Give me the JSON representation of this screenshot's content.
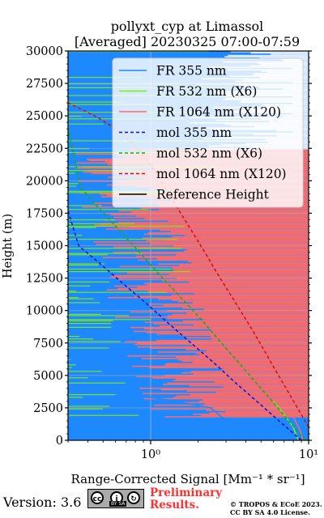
{
  "chart_data": {
    "type": "line",
    "title_line1": "pollyxt_cyp at Limassol",
    "title_line2": "[Averaged] 20230325 07:00-07:59",
    "xlabel": "Range-Corrected Signal [Mm⁻¹ * sr⁻¹]",
    "ylabel": "Height (m)",
    "xscale": "log",
    "xlim": [
      0.3,
      10
    ],
    "ylim": [
      0,
      30000
    ],
    "x_ticks": [
      {
        "value": 1,
        "label": "10⁰"
      },
      {
        "value": 10,
        "label": "10¹"
      }
    ],
    "y_ticks": [
      0,
      2500,
      5000,
      7500,
      10000,
      12500,
      15000,
      17500,
      20000,
      22500,
      25000,
      27500,
      30000
    ],
    "grid": true,
    "legend_position": "top-right",
    "colors": {
      "fr355": "#1e88ff",
      "fr532": "#80ee10",
      "fr1064": "#ff6a6a",
      "mol355": "#1010d0",
      "mol532": "#10b010",
      "mol1064": "#d01010",
      "ref": "#000000"
    },
    "series": [
      {
        "name": "FR 355 nm",
        "key": "fr355",
        "style": "solid",
        "x": [
          9.0,
          6.0,
          4.0,
          2.8,
          2.4,
          2.0,
          1.6,
          1.3,
          1.0,
          0.8,
          0.6
        ],
        "y": [
          0,
          500,
          1000,
          1800,
          2500,
          2700,
          2900,
          3100,
          3300,
          3450,
          3500
        ]
      },
      {
        "name": "FR 532 nm (X6)",
        "key": "fr532",
        "style": "solid",
        "x": [
          8.6,
          8.0,
          7.0,
          6.0
        ],
        "y": [
          0,
          1000,
          2000,
          3000
        ]
      },
      {
        "name": "FR 1064 nm (X120)",
        "key": "fr1064",
        "style": "solid",
        "x": [
          9.2,
          8.8,
          8.0,
          7.2
        ],
        "y": [
          0,
          800,
          1800,
          2800
        ]
      },
      {
        "name": "mol 355 nm",
        "key": "mol355",
        "style": "dashed",
        "x": [
          9.0,
          6.5,
          4.7,
          3.4,
          2.5,
          1.8,
          1.3,
          0.95,
          0.68,
          0.49,
          0.35,
          0.3
        ],
        "y": [
          0,
          1500,
          3000,
          4500,
          6000,
          7500,
          9000,
          10500,
          12000,
          13500,
          15000,
          17700
        ]
      },
      {
        "name": "mol 532 nm (X6)",
        "key": "mol532",
        "style": "dashed",
        "x": [
          9.5,
          7.5,
          5.9,
          4.6,
          3.6,
          2.8,
          2.2,
          1.7,
          1.3,
          1.0,
          0.78,
          0.6,
          0.46,
          0.36,
          0.3
        ],
        "y": [
          0,
          1500,
          3000,
          4500,
          6000,
          7500,
          9000,
          10500,
          12000,
          13500,
          15000,
          16500,
          18000,
          19500,
          24100
        ]
      },
      {
        "name": "mol 1064 nm (X120)",
        "key": "mol1064",
        "style": "dashed",
        "x": [
          10.0,
          8.5,
          7.2,
          6.1,
          5.2,
          4.4,
          3.7,
          3.1,
          2.6,
          2.2,
          1.85,
          1.55,
          1.3,
          1.1,
          0.92,
          0.78,
          0.66,
          0.55,
          0.46,
          0.38,
          0.3
        ],
        "y": [
          1000,
          2500,
          4000,
          5500,
          7000,
          8500,
          10000,
          11500,
          13000,
          14500,
          16000,
          17500,
          19000,
          20500,
          21800,
          22800,
          23600,
          24300,
          24900,
          25400,
          26000
        ]
      },
      {
        "name": "Reference Height",
        "key": "ref",
        "style": "solid",
        "x": [],
        "y": []
      }
    ]
  },
  "footer": {
    "version": "Version: 3.6",
    "cc_badge_text": "BY   SA",
    "cc_icon_labels": [
      "cc",
      "i",
      "↻"
    ],
    "preliminary_line1": "Preliminary",
    "preliminary_line2": "Results.",
    "copyright_line1": "© TROPOS & ECoE 2023.",
    "copyright_line2": "CC BY SA 4.0 License."
  }
}
